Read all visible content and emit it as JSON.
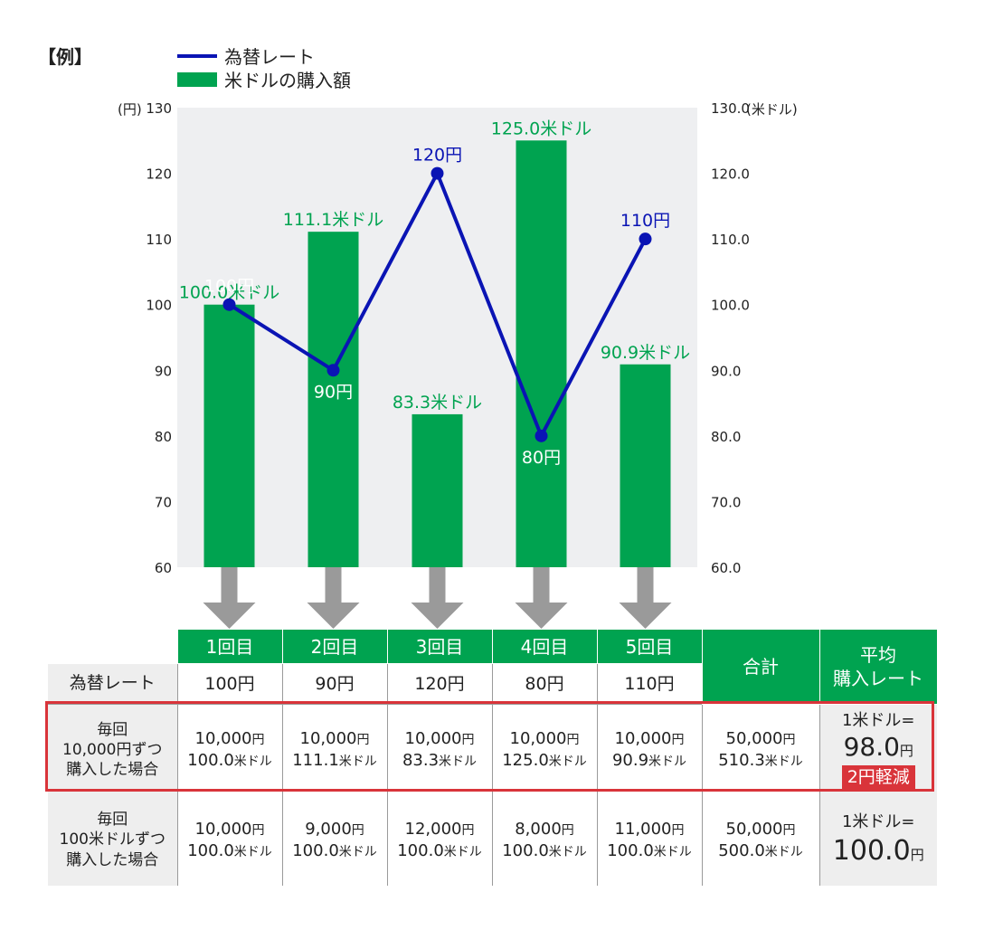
{
  "label": "【例】",
  "legend": {
    "line_label": "為替レート",
    "bar_label": "米ドルの購入額"
  },
  "colors": {
    "green": "#00a350",
    "blue": "#0a14b4",
    "red": "#d9343a",
    "grey": "#eeeeee",
    "arrow": "#9a9a9a"
  },
  "chart_data": {
    "type": "bar+line",
    "categories": [
      "1回目",
      "2回目",
      "3回目",
      "4回目",
      "5回目"
    ],
    "series": [
      {
        "name": "米ドルの購入額",
        "type": "bar",
        "axis": "right",
        "values": [
          100.0,
          111.1,
          83.3,
          125.0,
          90.9
        ],
        "labels": [
          "100.0米ドル",
          "111.1米ドル",
          "83.3米ドル",
          "125.0米ドル",
          "90.9米ドル"
        ]
      },
      {
        "name": "為替レート",
        "type": "line",
        "axis": "left",
        "values": [
          100,
          90,
          120,
          80,
          110
        ],
        "labels": [
          "100円",
          "90円",
          "120円",
          "80円",
          "110円"
        ]
      }
    ],
    "ylabel_left": "(円)",
    "ylabel_right": "(米ドル)",
    "ylim_left": [
      60,
      130
    ],
    "ylim_right": [
      60.0,
      130.0
    ],
    "yticks_left": [
      "60",
      "70",
      "80",
      "90",
      "100",
      "110",
      "120",
      "130"
    ],
    "yticks_right": [
      "60.0",
      "70.0",
      "80.0",
      "90.0",
      "100.0",
      "110.0",
      "120.0",
      "130.0"
    ],
    "legend_position": "top-left",
    "grid": false
  },
  "table": {
    "columns": [
      "1回目",
      "2回目",
      "3回目",
      "4回目",
      "5回目"
    ],
    "total_header": "合計",
    "average_header": [
      "平均",
      "購入レート"
    ],
    "rate_row": {
      "label": "為替レート",
      "values": [
        "100円",
        "90円",
        "120円",
        "80円",
        "110円"
      ]
    },
    "row1": {
      "label": [
        "毎回",
        "10,000円ずつ",
        "購入した場合"
      ],
      "yen": [
        "10,000",
        "10,000",
        "10,000",
        "10,000",
        "10,000"
      ],
      "usd": [
        "100.0",
        "111.1",
        "83.3",
        "125.0",
        "90.9"
      ],
      "total_yen": "50,000",
      "total_usd": "510.3",
      "avg_prefix": "1米ドル=",
      "avg_value": "98.0",
      "badge": "2円軽減"
    },
    "row2": {
      "label": [
        "毎回",
        "100米ドルずつ",
        "購入した場合"
      ],
      "yen": [
        "10,000",
        "9,000",
        "12,000",
        "8,000",
        "11,000"
      ],
      "usd": [
        "100.0",
        "100.0",
        "100.0",
        "100.0",
        "100.0"
      ],
      "total_yen": "50,000",
      "total_usd": "500.0",
      "avg_prefix": "1米ドル=",
      "avg_value": "100.0"
    },
    "yen_unit": "円",
    "usd_unit": "米ドル"
  }
}
